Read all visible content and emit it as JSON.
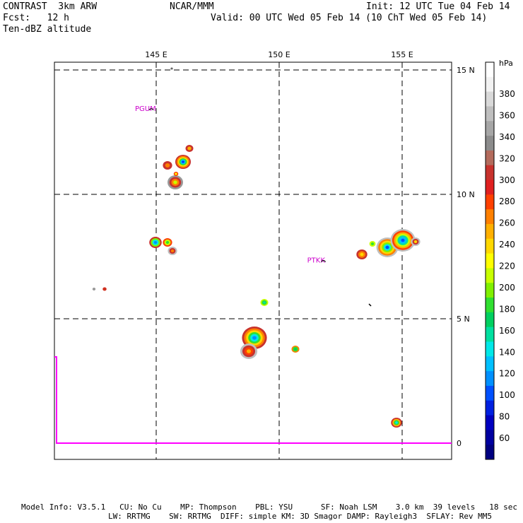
{
  "header": {
    "left": [
      "CONTRAST  3km ARW",
      "Fcst:   12 h",
      "Ten-dBZ altitude"
    ],
    "center": "NCAR/MMM",
    "right": [
      "Init: 12 UTC Tue 04 Feb 14",
      "Valid: 00 UTC Wed 05 Feb 14 (10 ChT Wed 05 Feb 14)"
    ]
  },
  "map": {
    "lon_labels": [
      {
        "lon": 145,
        "label": "145 E"
      },
      {
        "lon": 150,
        "label": "150 E"
      },
      {
        "lon": 155,
        "label": "155 E"
      }
    ],
    "lat_labels": [
      {
        "lat": 15,
        "label": "15 N"
      },
      {
        "lat": 10,
        "label": "10 N"
      },
      {
        "lat": 5,
        "label": "5 N"
      },
      {
        "lat": 0,
        "label": "0"
      }
    ],
    "stations": [
      {
        "id": "PGUM",
        "lon": 144.8,
        "lat": 13.5
      },
      {
        "id": "PTKK",
        "lon": 151.8,
        "lat": 7.4
      }
    ]
  },
  "colorbar": {
    "unit": "hPa",
    "labels": [
      "380",
      "360",
      "340",
      "320",
      "300",
      "280",
      "260",
      "240",
      "220",
      "200",
      "180",
      "160",
      "140",
      "120",
      "100",
      "80",
      "60"
    ],
    "colors": [
      "#ffffff",
      "#f2f2f2",
      "#d9d9d9",
      "#bfbfbf",
      "#a6a6a6",
      "#8c8c8c",
      "#b36b5c",
      "#c8322d",
      "#e02020",
      "#ff4000",
      "#ff8000",
      "#ffb000",
      "#ffd800",
      "#ffff00",
      "#c8ff00",
      "#80f000",
      "#30e030",
      "#00d060",
      "#00e0a0",
      "#00e8e8",
      "#00c0ff",
      "#0090ff",
      "#0050ff",
      "#0020e0",
      "#0000c0",
      "#0000a0",
      "#000080"
    ]
  },
  "footer": {
    "line1": "Model Info: V3.5.1   CU: No Cu    MP: Thompson    PBL: YSU      SF: Noah LSM    3.0 km  39 levels   18 sec",
    "line2": "LW: RRTMG    SW: RRTMG  DIFF: simple KM: 3D Smagor DAMP: Rayleigh3  SFLAY: Rev MM5"
  }
}
